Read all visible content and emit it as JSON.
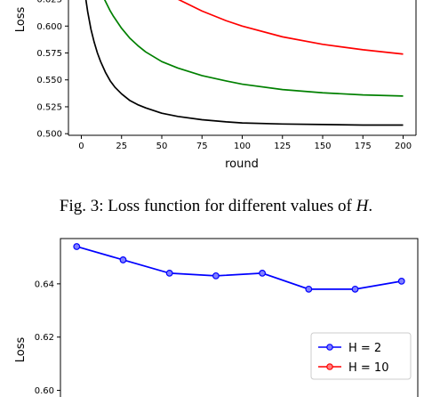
{
  "chart_data": [
    {
      "type": "line",
      "title": "",
      "xlabel": "round",
      "ylabel": "Loss",
      "xlim": [
        -8,
        208
      ],
      "ylim": [
        0.4985,
        0.6325
      ],
      "xticks": [
        0,
        25,
        50,
        75,
        100,
        125,
        150,
        175,
        200
      ],
      "yticks": [
        0.5,
        0.525,
        0.55,
        0.575,
        0.6,
        0.625
      ],
      "ytick_labels": [
        "0.500",
        "0.525",
        "0.550",
        "0.575",
        "0.600",
        "0.625"
      ],
      "grid": false,
      "series": [
        {
          "color": "#000000",
          "x": [
            2,
            4,
            6,
            8,
            10,
            12,
            15,
            18,
            21,
            25,
            30,
            35,
            40,
            50,
            60,
            75,
            90,
            100,
            125,
            150,
            175,
            200
          ],
          "y": [
            0.633,
            0.613,
            0.597,
            0.585,
            0.575,
            0.567,
            0.557,
            0.549,
            0.543,
            0.537,
            0.531,
            0.527,
            0.524,
            0.519,
            0.516,
            0.513,
            0.511,
            0.51,
            0.509,
            0.5085,
            0.508,
            0.508
          ]
        },
        {
          "color": "#008000",
          "x": [
            12,
            14,
            16,
            18,
            20,
            25,
            30,
            35,
            40,
            50,
            60,
            75,
            90,
            100,
            125,
            150,
            175,
            200
          ],
          "y": [
            0.633,
            0.626,
            0.62,
            0.614,
            0.609,
            0.598,
            0.589,
            0.582,
            0.576,
            0.567,
            0.561,
            0.554,
            0.549,
            0.546,
            0.541,
            0.538,
            0.536,
            0.535
          ]
        },
        {
          "color": "#ff0000",
          "x": [
            50,
            60,
            75,
            90,
            100,
            125,
            150,
            175,
            200
          ],
          "y": [
            0.633,
            0.625,
            0.614,
            0.605,
            0.6,
            0.59,
            0.583,
            0.578,
            0.574
          ]
        }
      ]
    },
    {
      "type": "line",
      "title": "",
      "xlabel": "",
      "ylabel": "Loss",
      "ylim": [
        0.5955,
        0.657
      ],
      "yticks": [
        0.6,
        0.62,
        0.64
      ],
      "ytick_labels": [
        "0.60",
        "0.62",
        "0.64"
      ],
      "legend_position": "lower-right",
      "grid": false,
      "series": [
        {
          "name": "H = 2",
          "color": "#0000ff",
          "marker": "circle",
          "x": [
            1,
            2,
            3,
            4,
            5,
            6,
            7,
            8
          ],
          "y": [
            0.654,
            0.649,
            0.644,
            0.643,
            0.644,
            0.638,
            0.638,
            0.641
          ]
        },
        {
          "name": "H = 10",
          "color": "#ff0000",
          "marker": "circle",
          "x": [],
          "y": []
        }
      ]
    }
  ],
  "figure_caption": "Fig. 3: Loss function for different values of H."
}
